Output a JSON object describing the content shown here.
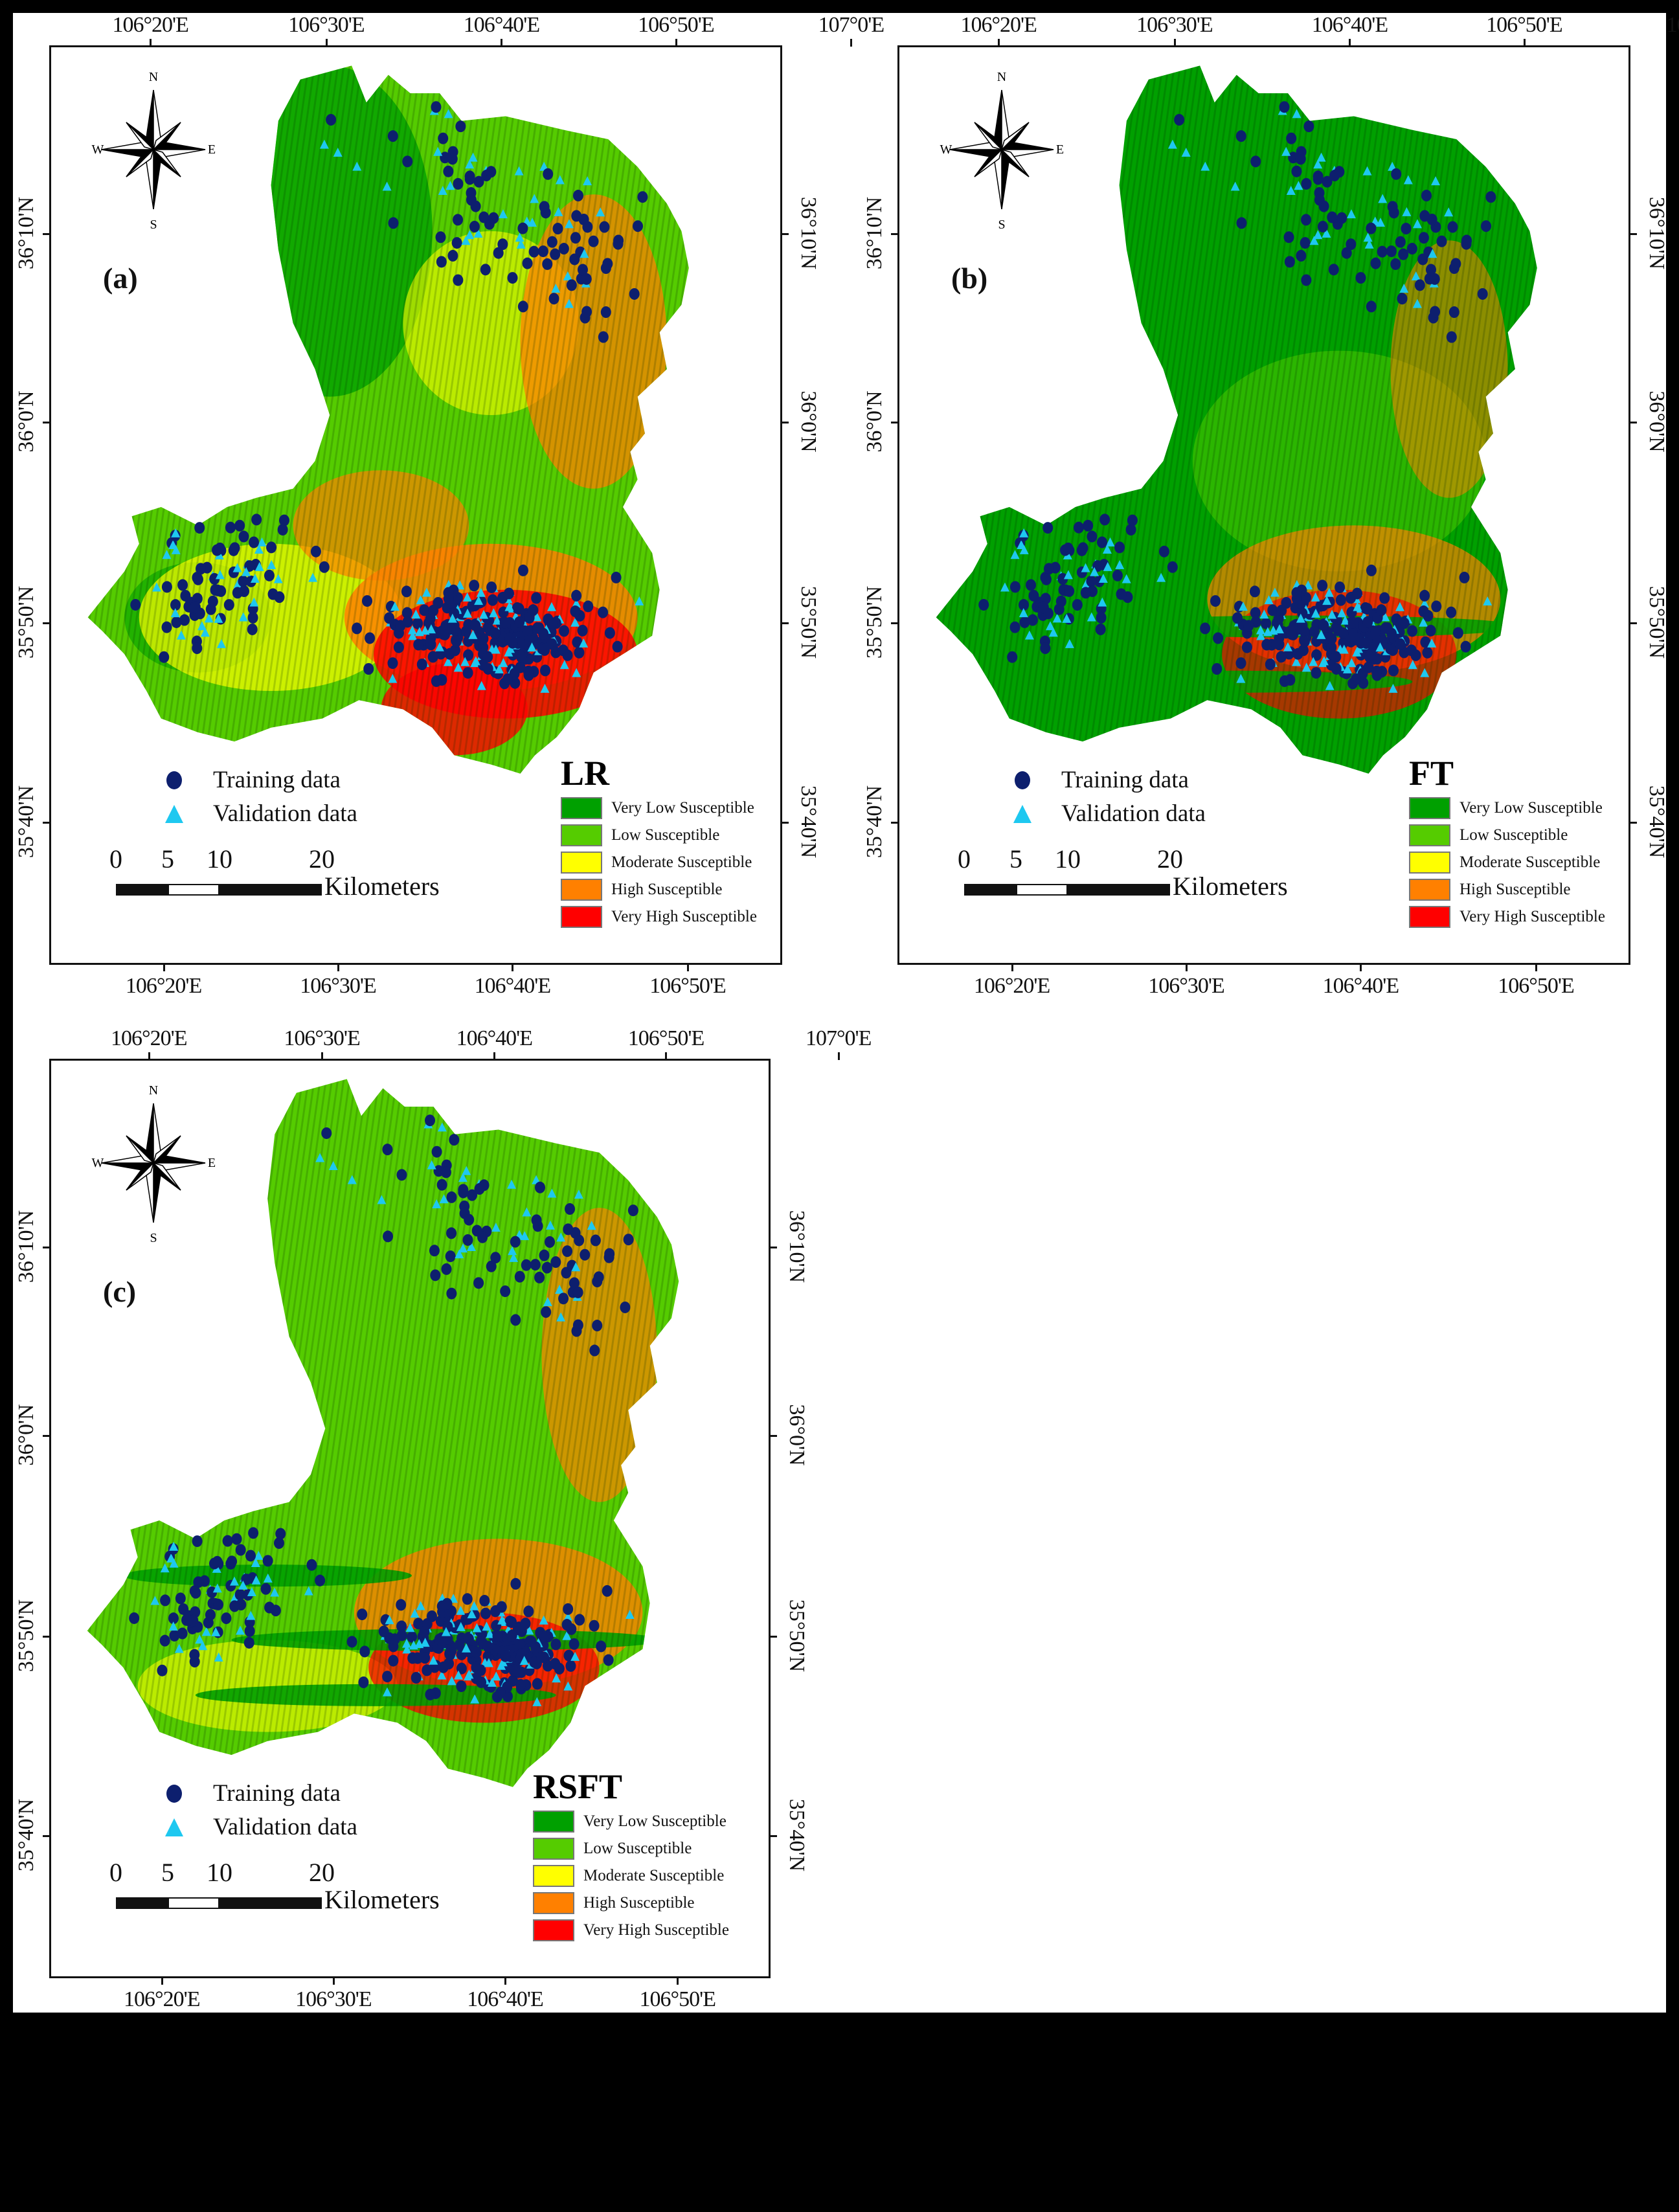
{
  "figure": {
    "background": "#000000",
    "canvas_color": "#ffffff"
  },
  "legend_common": {
    "training_label": "Training data",
    "validation_label": "Validation data",
    "training_color": "#0d1f6e",
    "validation_color": "#1ec8f0",
    "scale_ticks": [
      "0",
      "5",
      "10",
      "20"
    ],
    "scale_unit": "Kilometers",
    "classes": [
      {
        "label": "Very Low Susceptible",
        "color": "#00a000"
      },
      {
        "label": "Low Susceptible",
        "color": "#55cc00"
      },
      {
        "label": "Moderate Susceptible",
        "color": "#ffff00"
      },
      {
        "label": "High Susceptible",
        "color": "#ff8000"
      },
      {
        "label": "Very High Susceptible",
        "color": "#ff0000"
      }
    ],
    "compass": {
      "n": "N",
      "s": "S",
      "e": "E",
      "w": "W"
    }
  },
  "axes": {
    "top_lon": [
      "106°20'E",
      "106°30'E",
      "106°40'E",
      "106°50'E",
      "107°0'E"
    ],
    "bottom_lon": [
      "106°20'E",
      "106°30'E",
      "106°40'E",
      "106°50'E"
    ],
    "lat": [
      "36°10'N",
      "36°0'N",
      "35°50'N",
      "35°40'N"
    ]
  },
  "panels": [
    {
      "tag": "(a)",
      "model": "LR"
    },
    {
      "tag": "(b)",
      "model": "FT"
    },
    {
      "tag": "(c)",
      "model": "RSFT"
    }
  ]
}
